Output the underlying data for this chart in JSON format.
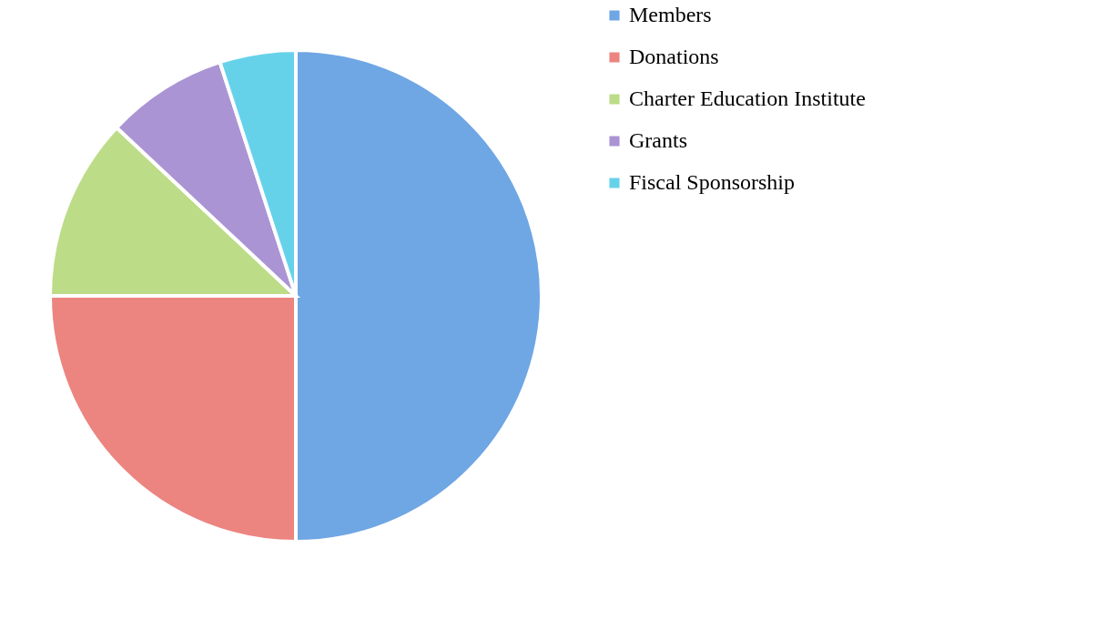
{
  "chart_data": {
    "type": "pie",
    "categories": [
      "Members",
      "Donations",
      "Charter Education Institute",
      "Grants",
      "Fiscal Sponsorship"
    ],
    "values": [
      50,
      25,
      12,
      8,
      5
    ],
    "colors": [
      "#6fa6e4",
      "#ec8480",
      "#bcdc88",
      "#ab94d4",
      "#66d2ea"
    ],
    "legend": "right"
  }
}
